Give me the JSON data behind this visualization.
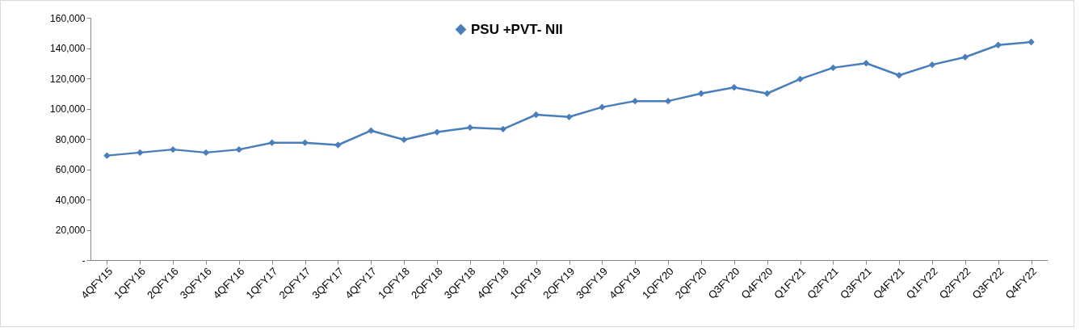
{
  "chart_data": {
    "type": "line",
    "categories": [
      "4QFY15",
      "1QFY16",
      "2QFY16",
      "3QFY16",
      "4QFY16",
      "1QFY17",
      "2QFY17",
      "3QFY17",
      "4QFY17",
      "1QFY18",
      "2QFY18",
      "3QFY18",
      "4QFY18",
      "1QFY19",
      "2QFY19",
      "3QFY19",
      "4QFY19",
      "1QFY20",
      "2QFY20",
      "Q3FY20",
      "Q4FY20",
      "Q1FY21",
      "Q2FY21",
      "Q3FY21",
      "Q4FY21",
      "Q1FY22",
      "Q2FY22",
      "Q3FY22",
      "Q4FY22"
    ],
    "series": [
      {
        "name": "PSU +PVT- NII",
        "color": "#4a7ebb",
        "values": [
          69000,
          71000,
          73000,
          71000,
          73000,
          77500,
          77500,
          76000,
          85500,
          79500,
          84500,
          87500,
          86500,
          96000,
          94500,
          101000,
          105000,
          105000,
          110000,
          114000,
          110000,
          119500,
          127000,
          130000,
          122000,
          129000,
          134000,
          142000,
          144000
        ]
      }
    ],
    "ylim": [
      0,
      160000
    ],
    "yticks": [
      {
        "value": 0,
        "label": "-"
      },
      {
        "value": 20000,
        "label": "20,000"
      },
      {
        "value": 40000,
        "label": "40,000"
      },
      {
        "value": 60000,
        "label": "60,000"
      },
      {
        "value": 80000,
        "label": "80,000"
      },
      {
        "value": 100000,
        "label": "100,000"
      },
      {
        "value": 120000,
        "label": "120,000"
      },
      {
        "value": 140000,
        "label": "140,000"
      },
      {
        "value": 160000,
        "label": "160,000"
      }
    ],
    "grid": false,
    "legend": "top",
    "marker": "diamond",
    "line_style": "solid"
  }
}
